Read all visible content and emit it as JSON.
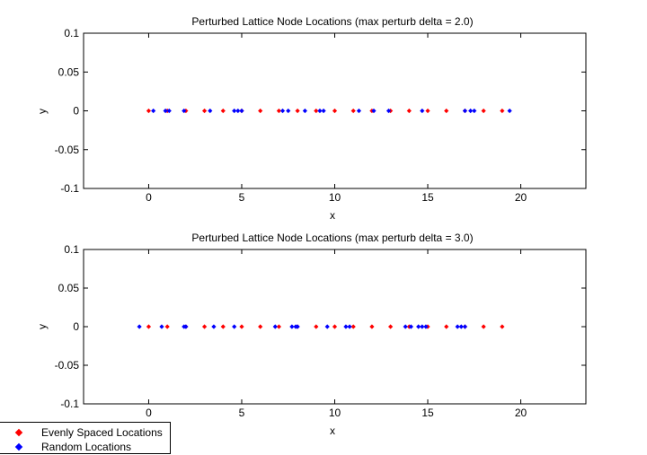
{
  "colors": {
    "even": "#ff0000",
    "random": "#0000ff",
    "axes": "#000000"
  },
  "legend": {
    "entries": [
      {
        "label": "Evenly Spaced Locations",
        "color_key": "even",
        "marker": "diamond"
      },
      {
        "label": "Random Locations",
        "color_key": "random",
        "marker": "diamond"
      }
    ],
    "placement": "bottom-left"
  },
  "chart_data": [
    {
      "type": "scatter",
      "title": "Perturbed Lattice Node Locations (max perturb delta = 2.0)",
      "xlabel": "x",
      "ylabel": "y",
      "xlim": [
        -3.5,
        23.5
      ],
      "ylim": [
        -0.1,
        0.1
      ],
      "xticks": [
        0,
        5,
        10,
        15,
        20
      ],
      "yticks": [
        0.1,
        0.05,
        0,
        -0.05,
        -0.1
      ],
      "ytick_labels": [
        "0.1",
        "0.05",
        "0",
        "-0.05",
        "-0.1"
      ],
      "grid": false,
      "series": [
        {
          "name": "Evenly Spaced Locations",
          "color_key": "even",
          "x": [
            0,
            1,
            2,
            3,
            4,
            5,
            6,
            7,
            8,
            9,
            10,
            11,
            12,
            13,
            14,
            15,
            16,
            17,
            18,
            19
          ],
          "y": [
            0,
            0,
            0,
            0,
            0,
            0,
            0,
            0,
            0,
            0,
            0,
            0,
            0,
            0,
            0,
            0,
            0,
            0,
            0,
            0
          ]
        },
        {
          "name": "Random Locations",
          "color_key": "random",
          "x": [
            0.25,
            0.9,
            1.1,
            1.9,
            3.3,
            4.6,
            4.8,
            5.0,
            7.2,
            7.5,
            8.4,
            9.2,
            9.4,
            11.3,
            12.1,
            12.9,
            14.7,
            17.0,
            17.3,
            17.5,
            19.4
          ],
          "y": [
            0,
            0,
            0,
            0,
            0,
            0,
            0,
            0,
            0,
            0,
            0,
            0,
            0,
            0,
            0,
            0,
            0,
            0,
            0,
            0,
            0
          ]
        }
      ]
    },
    {
      "type": "scatter",
      "title": "Perturbed Lattice Node Locations (max perturb delta = 3.0)",
      "xlabel": "x",
      "ylabel": "y",
      "xlim": [
        -3.5,
        23.5
      ],
      "ylim": [
        -0.1,
        0.1
      ],
      "xticks": [
        0,
        5,
        10,
        15,
        20
      ],
      "yticks": [
        0.1,
        0.05,
        0,
        -0.05,
        -0.1
      ],
      "ytick_labels": [
        "0.1",
        "0.05",
        "0",
        "-0.05",
        "-0.1"
      ],
      "grid": false,
      "series": [
        {
          "name": "Evenly Spaced Locations",
          "color_key": "even",
          "x": [
            0,
            1,
            2,
            3,
            4,
            5,
            6,
            7,
            8,
            9,
            10,
            11,
            12,
            13,
            14,
            15,
            16,
            17,
            18,
            19
          ],
          "y": [
            0,
            0,
            0,
            0,
            0,
            0,
            0,
            0,
            0,
            0,
            0,
            0,
            0,
            0,
            0,
            0,
            0,
            0,
            0,
            0
          ]
        },
        {
          "name": "Random Locations",
          "color_key": "random",
          "x": [
            -0.5,
            0.7,
            1.9,
            2.0,
            3.5,
            4.6,
            6.8,
            7.7,
            7.9,
            8.0,
            9.6,
            10.6,
            10.8,
            13.8,
            14.1,
            14.5,
            14.7,
            14.9,
            16.6,
            16.8,
            17.0
          ],
          "y": [
            0,
            0,
            0,
            0,
            0,
            0,
            0,
            0,
            0,
            0,
            0,
            0,
            0,
            0,
            0,
            0,
            0,
            0,
            0,
            0,
            0
          ]
        }
      ]
    }
  ]
}
